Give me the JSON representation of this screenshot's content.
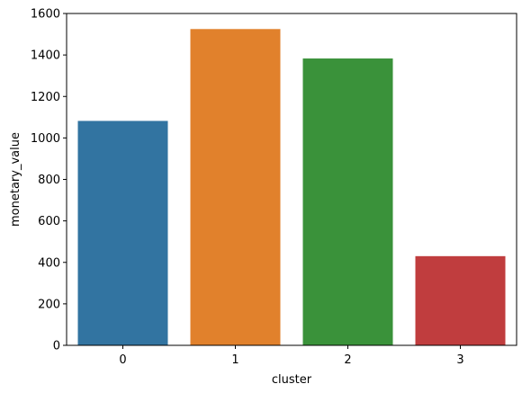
{
  "chart_data": {
    "type": "bar",
    "title": "",
    "xlabel": "cluster",
    "ylabel": "monetary_value",
    "categories": [
      "0",
      "1",
      "2",
      "3"
    ],
    "values": [
      1082,
      1525,
      1383,
      430
    ],
    "colors": [
      "#3274a1",
      "#e1812c",
      "#3a923a",
      "#c03d3e"
    ],
    "ylim": [
      0,
      1600
    ],
    "yticks": [
      0,
      200,
      400,
      600,
      800,
      1000,
      1200,
      1400,
      1600
    ],
    "grid": false,
    "legend": false
  }
}
